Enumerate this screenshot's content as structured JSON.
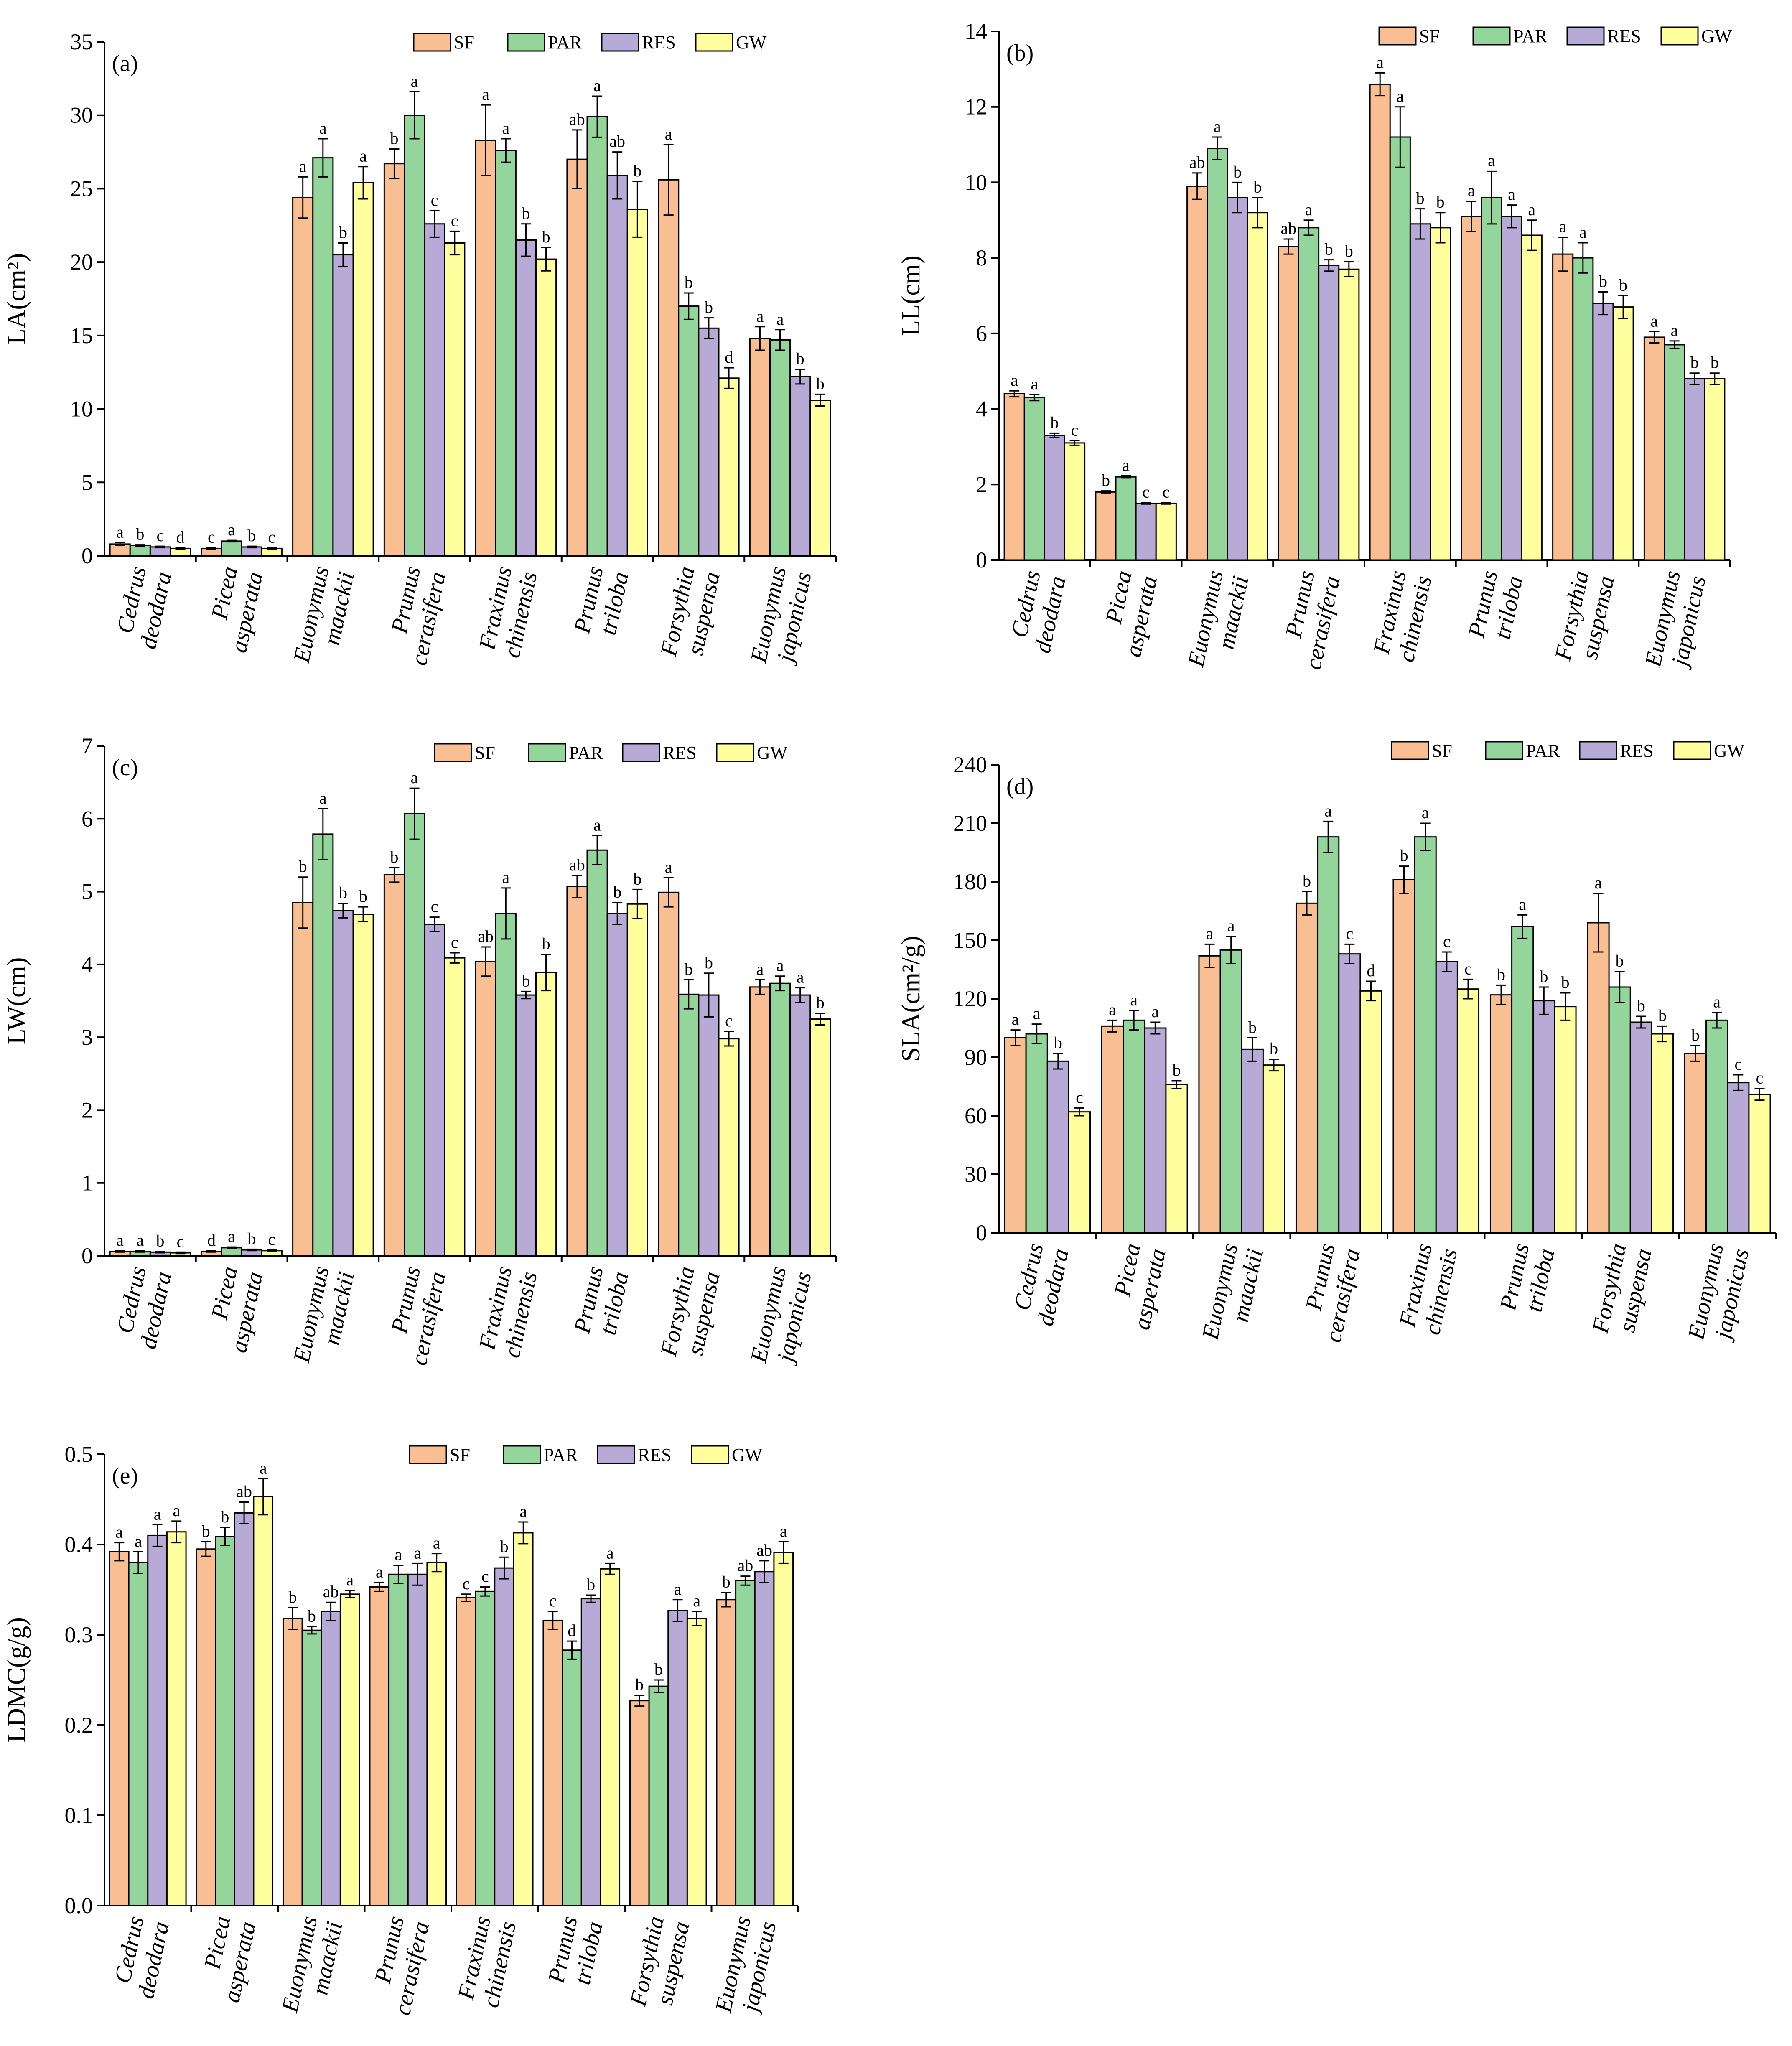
{
  "figure_colors": {
    "SF": "#F9BE91",
    "PAR": "#93D59A",
    "RES": "#B8AAD6",
    "GW": "#FFFF9E",
    "stroke": "#000000"
  },
  "chart_data": [
    {
      "type": "bar",
      "panel_label": "(a)",
      "ylabel": "LA(cm²)",
      "ylim": [
        0,
        35
      ],
      "yticks": [
        "0",
        "5",
        "10",
        "15",
        "20",
        "25",
        "30",
        "35"
      ],
      "legend": [
        "SF",
        "PAR",
        "RES",
        "GW"
      ],
      "legend_position": "top-right",
      "categories": [
        [
          "Cedrus",
          "deodara"
        ],
        [
          "Picea",
          "asperata"
        ],
        [
          "Euonymus",
          "maackii"
        ],
        [
          "Prunus",
          "cerasifera"
        ],
        [
          "Fraxinus",
          "chinensis"
        ],
        [
          "Prunus",
          "triloba"
        ],
        [
          "Forsythia",
          "suspensa"
        ],
        [
          "Euonymus",
          "japonicus"
        ]
      ],
      "series": [
        {
          "name": "SF",
          "values": [
            0.8,
            0.5,
            24.4,
            26.7,
            28.3,
            27.0,
            25.6,
            14.8
          ],
          "errors": [
            0.1,
            0.05,
            1.4,
            1.0,
            2.4,
            2.0,
            2.4,
            0.8
          ],
          "sig": [
            "a",
            "c",
            "a",
            "b",
            "a",
            "ab",
            "a",
            "a"
          ]
        },
        {
          "name": "PAR",
          "values": [
            0.7,
            1.0,
            27.1,
            30.0,
            27.6,
            29.9,
            17.0,
            14.7
          ],
          "errors": [
            0.05,
            0.05,
            1.3,
            1.6,
            0.8,
            1.4,
            0.9,
            0.7
          ],
          "sig": [
            "b",
            "a",
            "a",
            "a",
            "a",
            "a",
            "b",
            "a"
          ]
        },
        {
          "name": "RES",
          "values": [
            0.6,
            0.6,
            20.5,
            22.6,
            21.5,
            25.9,
            15.5,
            12.2
          ],
          "errors": [
            0.05,
            0.05,
            0.8,
            0.9,
            1.1,
            1.6,
            0.7,
            0.5
          ],
          "sig": [
            "c",
            "b",
            "b",
            "c",
            "b",
            "ab",
            "b",
            "b"
          ]
        },
        {
          "name": "GW",
          "values": [
            0.5,
            0.5,
            25.4,
            21.3,
            20.2,
            23.6,
            12.1,
            10.6
          ],
          "errors": [
            0.05,
            0.05,
            1.1,
            0.8,
            0.8,
            1.9,
            0.7,
            0.4
          ],
          "sig": [
            "d",
            "c",
            "a",
            "c",
            "b",
            "b",
            "d",
            "b"
          ]
        }
      ]
    },
    {
      "type": "bar",
      "panel_label": "(b)",
      "ylabel": "LL(cm)",
      "ylim": [
        0,
        14
      ],
      "yticks": [
        "0",
        "2",
        "4",
        "6",
        "8",
        "10",
        "12",
        "14"
      ],
      "legend": [
        "SF",
        "PAR",
        "RES",
        "GW"
      ],
      "legend_position": "top-right",
      "categories": [
        [
          "Cedrus",
          "deodara"
        ],
        [
          "Picea",
          "asperata"
        ],
        [
          "Euonymus",
          "maackii"
        ],
        [
          "Prunus",
          "cerasifera"
        ],
        [
          "Fraxinus",
          "chinensis"
        ],
        [
          "Prunus",
          "triloba"
        ],
        [
          "Forsythia",
          "suspensa"
        ],
        [
          "Euonymus",
          "japonicus"
        ]
      ],
      "series": [
        {
          "name": "SF",
          "values": [
            4.4,
            1.8,
            9.9,
            8.3,
            12.6,
            9.1,
            8.1,
            5.9
          ],
          "errors": [
            0.08,
            0.03,
            0.35,
            0.2,
            0.3,
            0.4,
            0.45,
            0.15
          ],
          "sig": [
            "a",
            "b",
            "ab",
            "ab",
            "a",
            "a",
            "a",
            "a"
          ]
        },
        {
          "name": "PAR",
          "values": [
            4.3,
            2.2,
            10.9,
            8.8,
            11.2,
            9.6,
            8.0,
            5.7
          ],
          "errors": [
            0.08,
            0.03,
            0.3,
            0.2,
            0.8,
            0.7,
            0.4,
            0.1
          ],
          "sig": [
            "a",
            "a",
            "a",
            "a",
            "a",
            "a",
            "a",
            "a"
          ]
        },
        {
          "name": "RES",
          "values": [
            3.3,
            1.5,
            9.6,
            7.8,
            8.9,
            9.1,
            6.8,
            4.8
          ],
          "errors": [
            0.06,
            0.02,
            0.4,
            0.15,
            0.4,
            0.3,
            0.3,
            0.15
          ],
          "sig": [
            "b",
            "c",
            "b",
            "b",
            "b",
            "a",
            "b",
            "b"
          ]
        },
        {
          "name": "GW",
          "values": [
            3.1,
            1.5,
            9.2,
            7.7,
            8.8,
            8.6,
            6.7,
            4.8
          ],
          "errors": [
            0.06,
            0.02,
            0.4,
            0.2,
            0.4,
            0.4,
            0.3,
            0.15
          ],
          "sig": [
            "c",
            "c",
            "b",
            "b",
            "b",
            "a",
            "b",
            "b"
          ]
        }
      ]
    },
    {
      "type": "bar",
      "panel_label": "(c)",
      "ylabel": "LW(cm)",
      "ylim": [
        0,
        7
      ],
      "yticks": [
        "0",
        "1",
        "2",
        "3",
        "4",
        "5",
        "6",
        "7"
      ],
      "legend": [
        "SF",
        "PAR",
        "RES",
        "GW"
      ],
      "legend_position": "top-right",
      "categories": [
        [
          "Cedrus",
          "deodara"
        ],
        [
          "Picea",
          "asperata"
        ],
        [
          "Euonymus",
          "maackii"
        ],
        [
          "Prunus",
          "cerasifera"
        ],
        [
          "Fraxinus",
          "chinensis"
        ],
        [
          "Prunus",
          "triloba"
        ],
        [
          "Forsythia",
          "suspensa"
        ],
        [
          "Euonymus",
          "japonicus"
        ]
      ],
      "series": [
        {
          "name": "SF",
          "values": [
            0.06,
            0.06,
            4.85,
            5.23,
            4.04,
            5.07,
            4.99,
            3.69
          ],
          "errors": [
            0.01,
            0.01,
            0.35,
            0.1,
            0.2,
            0.15,
            0.2,
            0.1
          ],
          "sig": [
            "a",
            "d",
            "b",
            "b",
            "ab",
            "ab",
            "a",
            "a"
          ]
        },
        {
          "name": "PAR",
          "values": [
            0.06,
            0.11,
            5.79,
            6.07,
            4.7,
            5.57,
            3.59,
            3.74
          ],
          "errors": [
            0.01,
            0.01,
            0.35,
            0.35,
            0.35,
            0.2,
            0.2,
            0.1
          ],
          "sig": [
            "a",
            "a",
            "a",
            "a",
            "a",
            "a",
            "b",
            "a"
          ]
        },
        {
          "name": "RES",
          "values": [
            0.05,
            0.08,
            4.74,
            4.55,
            3.58,
            4.7,
            3.58,
            3.58
          ],
          "errors": [
            0.01,
            0.01,
            0.1,
            0.1,
            0.05,
            0.15,
            0.3,
            0.1
          ],
          "sig": [
            "b",
            "b",
            "b",
            "c",
            "b",
            "b",
            "b",
            "a"
          ]
        },
        {
          "name": "GW",
          "values": [
            0.04,
            0.07,
            4.69,
            4.09,
            3.89,
            4.83,
            2.98,
            3.25
          ],
          "errors": [
            0.01,
            0.01,
            0.1,
            0.07,
            0.25,
            0.2,
            0.1,
            0.08
          ],
          "sig": [
            "c",
            "c",
            "b",
            "c",
            "b",
            "b",
            "c",
            "b"
          ]
        }
      ]
    },
    {
      "type": "bar",
      "panel_label": "(d)",
      "ylabel": "SLA(cm²/g)",
      "ylim": [
        0,
        240
      ],
      "yticks": [
        "0",
        "30",
        "60",
        "90",
        "120",
        "150",
        "180",
        "210",
        "240"
      ],
      "legend": [
        "SF",
        "PAR",
        "RES",
        "GW"
      ],
      "legend_position": "top-right",
      "categories": [
        [
          "Cedrus",
          "deodara"
        ],
        [
          "Picea",
          "asperata"
        ],
        [
          "Euonymus",
          "maackii"
        ],
        [
          "Prunus",
          "cerasifera"
        ],
        [
          "Fraxinus",
          "chinensis"
        ],
        [
          "Prunus",
          "triloba"
        ],
        [
          "Forsythia",
          "suspensa"
        ],
        [
          "Euonymus",
          "japonicus"
        ]
      ],
      "series": [
        {
          "name": "SF",
          "values": [
            100,
            106,
            142,
            169,
            181,
            122,
            159,
            92
          ],
          "errors": [
            4,
            3,
            6,
            6,
            7,
            5,
            15,
            4
          ],
          "sig": [
            "a",
            "a",
            "a",
            "b",
            "b",
            "b",
            "a",
            "b"
          ]
        },
        {
          "name": "PAR",
          "values": [
            102,
            109,
            145,
            203,
            203,
            157,
            126,
            109
          ],
          "errors": [
            5,
            5,
            7,
            8,
            7,
            6,
            8,
            4
          ],
          "sig": [
            "a",
            "a",
            "a",
            "a",
            "a",
            "a",
            "b",
            "a"
          ]
        },
        {
          "name": "RES",
          "values": [
            88,
            105,
            94,
            143,
            139,
            119,
            108,
            77
          ],
          "errors": [
            4,
            3,
            6,
            5,
            5,
            7,
            3,
            4
          ],
          "sig": [
            "b",
            "a",
            "b",
            "c",
            "c",
            "b",
            "b",
            "c"
          ]
        },
        {
          "name": "GW",
          "values": [
            62,
            76,
            86,
            124,
            125,
            116,
            102,
            71
          ],
          "errors": [
            2,
            2,
            3,
            5,
            5,
            7,
            4,
            3
          ],
          "sig": [
            "c",
            "b",
            "b",
            "d",
            "c",
            "b",
            "b",
            "c"
          ]
        }
      ]
    },
    {
      "type": "bar",
      "panel_label": "(e)",
      "ylabel": "LDMC(g/g)",
      "ylim": [
        0,
        0.5
      ],
      "yticks": [
        "0.0",
        "0.1",
        "0.2",
        "0.3",
        "0.4",
        "0.5"
      ],
      "legend": [
        "SF",
        "PAR",
        "RES",
        "GW"
      ],
      "legend_position": "top-right",
      "categories": [
        [
          "Cedrus",
          "deodara"
        ],
        [
          "Picea",
          "asperata"
        ],
        [
          "Euonymus",
          "maackii"
        ],
        [
          "Prunus",
          "cerasifera"
        ],
        [
          "Fraxinus",
          "chinensis"
        ],
        [
          "Prunus",
          "triloba"
        ],
        [
          "Forsythia",
          "suspensa"
        ],
        [
          "Euonymus",
          "japonicus"
        ]
      ],
      "series": [
        {
          "name": "SF",
          "values": [
            0.392,
            0.395,
            0.318,
            0.353,
            0.341,
            0.316,
            0.227,
            0.339
          ],
          "errors": [
            0.01,
            0.008,
            0.012,
            0.005,
            0.004,
            0.01,
            0.006,
            0.008
          ],
          "sig": [
            "a",
            "b",
            "b",
            "a",
            "c",
            "c",
            "b",
            "b"
          ]
        },
        {
          "name": "PAR",
          "values": [
            0.38,
            0.409,
            0.305,
            0.367,
            0.348,
            0.283,
            0.243,
            0.36
          ],
          "errors": [
            0.012,
            0.01,
            0.004,
            0.01,
            0.005,
            0.01,
            0.007,
            0.005
          ],
          "sig": [
            "a",
            "b",
            "b",
            "a",
            "c",
            "d",
            "b",
            "ab"
          ]
        },
        {
          "name": "RES",
          "values": [
            0.41,
            0.435,
            0.326,
            0.367,
            0.374,
            0.34,
            0.327,
            0.37
          ],
          "errors": [
            0.012,
            0.012,
            0.01,
            0.012,
            0.012,
            0.004,
            0.012,
            0.012
          ],
          "sig": [
            "a",
            "ab",
            "ab",
            "a",
            "b",
            "b",
            "a",
            "ab"
          ]
        },
        {
          "name": "GW",
          "values": [
            0.414,
            0.453,
            0.345,
            0.38,
            0.413,
            0.373,
            0.318,
            0.391
          ],
          "errors": [
            0.012,
            0.02,
            0.004,
            0.01,
            0.012,
            0.006,
            0.008,
            0.012
          ],
          "sig": [
            "a",
            "a",
            "a",
            "a",
            "a",
            "a",
            "a",
            "a"
          ]
        }
      ]
    }
  ]
}
